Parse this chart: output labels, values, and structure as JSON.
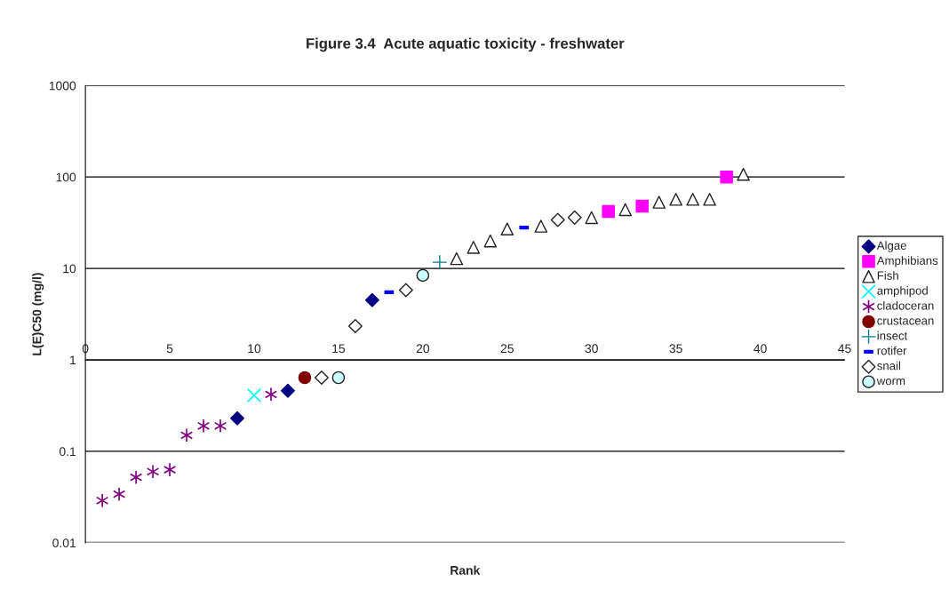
{
  "chart_data": {
    "type": "scatter",
    "title": "Figure 3.4  Acute aquatic toxicity - freshwater",
    "xlabel": "Rank",
    "ylabel": "L(E)C50 (mg/l)",
    "log": "y",
    "xlim": [
      0,
      45
    ],
    "xticks": [
      0,
      5,
      10,
      15,
      20,
      25,
      30,
      35,
      40,
      45
    ],
    "ylim": [
      0.01,
      1000
    ],
    "yticks": [
      0.01,
      0.1,
      1,
      10,
      100,
      1000
    ],
    "grid": "y",
    "legend": "right",
    "series": [
      {
        "name": "Algae",
        "color": "#000080",
        "marker": "diamond",
        "x": [
          9,
          12,
          17
        ],
        "values": [
          0.23,
          0.46,
          4.5
        ]
      },
      {
        "name": "Amphibians",
        "color": "#ff00ff",
        "marker": "square",
        "x": [
          31,
          33,
          38
        ],
        "values": [
          42,
          48,
          100
        ]
      },
      {
        "name": "Fish",
        "color": "#ffffff",
        "marker": "triangle",
        "x": [
          22,
          23,
          24,
          25,
          27,
          30,
          32,
          34,
          35,
          36,
          37,
          39
        ],
        "values": [
          12.8,
          17,
          20,
          27,
          29,
          36,
          44,
          53,
          57,
          57,
          57,
          107
        ]
      },
      {
        "name": "amphipod",
        "color": "#00ffff",
        "marker": "x",
        "x": [
          10
        ],
        "values": [
          0.41
        ]
      },
      {
        "name": "cladoceran",
        "color": "#800080",
        "marker": "cross",
        "x": [
          1,
          2,
          3,
          4,
          5,
          6,
          7,
          8,
          11
        ],
        "values": [
          0.029,
          0.034,
          0.052,
          0.06,
          0.063,
          0.15,
          0.19,
          0.19,
          0.42
        ]
      },
      {
        "name": "crustacean",
        "color": "#800000",
        "marker": "circle",
        "x": [
          13
        ],
        "values": [
          0.64
        ]
      },
      {
        "name": "insect",
        "color": "#008080",
        "x": [
          21
        ],
        "values": [
          11.7
        ]
      },
      {
        "name": "rotifer",
        "color": "#0000ff",
        "x": [
          18,
          26
        ],
        "values": [
          5.5,
          28
        ]
      },
      {
        "name": "snail",
        "color": "#ffffff",
        "marker": "diamond",
        "x": [
          14,
          16,
          19,
          28,
          29
        ],
        "values": [
          0.64,
          2.34,
          5.8,
          34,
          36
        ]
      },
      {
        "name": "worm",
        "color": "#ccffff",
        "marker": "circle",
        "x": [
          15,
          20
        ],
        "values": [
          0.64,
          8.4
        ]
      }
    ]
  }
}
